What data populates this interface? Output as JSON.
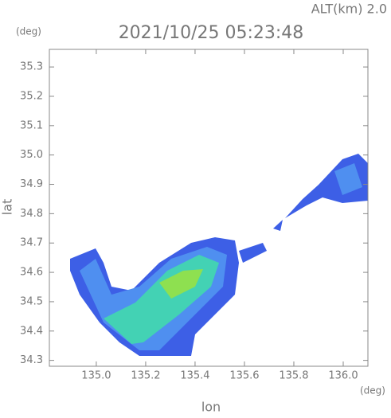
{
  "chart_data": {
    "type": "map",
    "title": "2021/10/25 05:23:48",
    "altitude_label": "ALT(km) 2.0",
    "y_unit": "(deg)",
    "x_unit": "(deg)",
    "ylabel": "lat",
    "xlabel": "lon",
    "xlim": [
      134.81,
      136.1
    ],
    "ylim": [
      34.28,
      35.36
    ],
    "xticks": [
      {
        "value": 135.0,
        "label": "135.0"
      },
      135.2,
      135.4,
      135.6,
      135.8,
      {
        "value": 136.0,
        "label": "136.0"
      }
    ],
    "yticks": [
      34.3,
      34.4,
      34.5,
      34.6,
      34.7,
      34.8,
      34.9,
      {
        "value": 35.0,
        "label": "35.0"
      },
      35.1,
      35.2,
      35.3
    ]
  }
}
